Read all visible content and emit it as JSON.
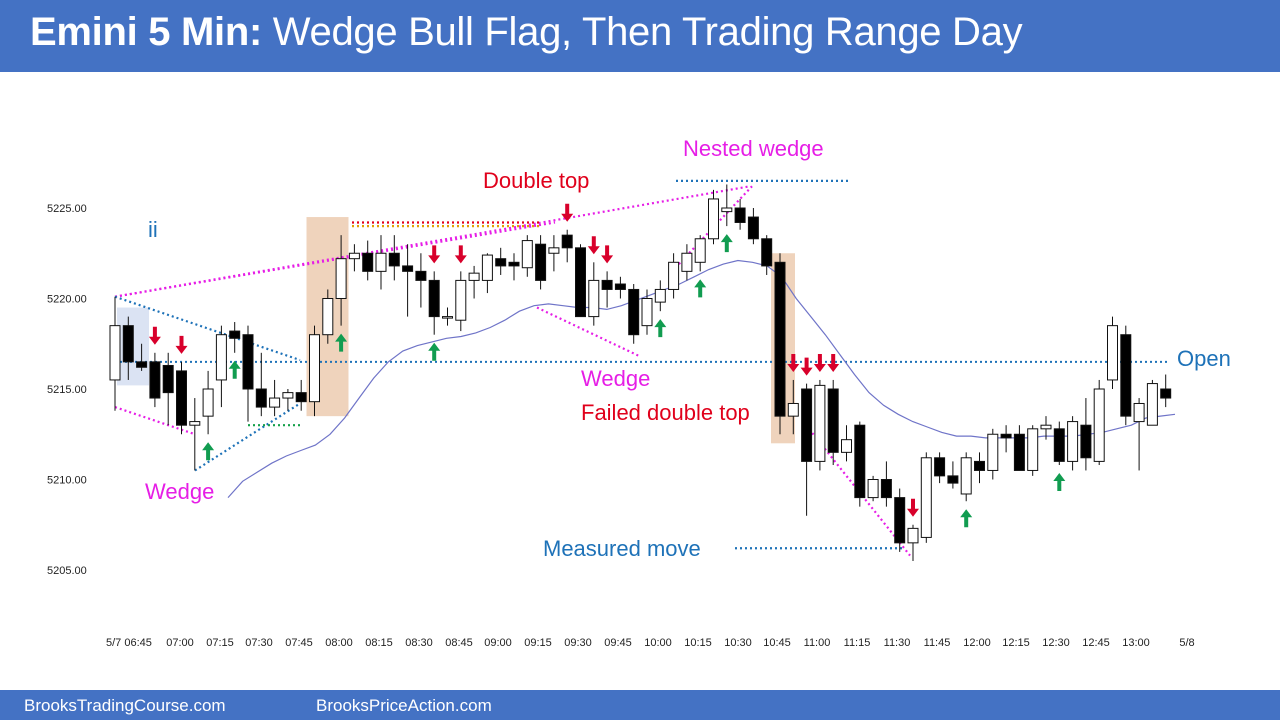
{
  "header": {
    "title_bold": "Emini 5 Min:",
    "title_rest": " Wedge Bull Flag, Then Trading Range Day"
  },
  "footer": {
    "left": "BrooksTradingCourse.com",
    "right": "BrooksPriceAction.com"
  },
  "colors": {
    "header_bg": "#4472c4",
    "bull_body": "#ffffff",
    "bear_body": "#000000",
    "ema": "#6f74c8",
    "magenta": "#e61ee6",
    "blue_label": "#1f6fc0",
    "red_label": "#e0001b",
    "up_arrow": "#119c50",
    "down_arrow": "#d8002b",
    "highlight": "#efd3bc"
  },
  "chart_data": {
    "type": "candlestick",
    "title": "Emini 5 Min",
    "ylim": [
      5203.5,
      5233.0
    ],
    "y_ticks": [
      "5205.00",
      "5210.00",
      "5215.00",
      "5220.00",
      "5225.00"
    ],
    "x_ticks": [
      "5/7 06:45",
      "07:00",
      "07:15",
      "07:30",
      "07:45",
      "08:00",
      "08:15",
      "08:30",
      "08:45",
      "09:00",
      "09:15",
      "09:30",
      "09:45",
      "10:00",
      "10:15",
      "10:30",
      "10:45",
      "11:00",
      "11:15",
      "11:30",
      "11:45",
      "12:00",
      "12:15",
      "12:30",
      "12:45",
      "13:00",
      "5/8"
    ],
    "bars": [
      {
        "o": 5215.5,
        "h": 5220.1,
        "l": 5213.8,
        "c": 5218.5
      },
      {
        "o": 5218.5,
        "h": 5219.0,
        "l": 5215.5,
        "c": 5216.5
      },
      {
        "o": 5216.5,
        "h": 5217.5,
        "l": 5216.0,
        "c": 5216.2
      },
      {
        "o": 5216.5,
        "h": 5217.0,
        "l": 5214.0,
        "c": 5214.5
      },
      {
        "o": 5216.3,
        "h": 5217.0,
        "l": 5213.0,
        "c": 5214.8
      },
      {
        "o": 5216.0,
        "h": 5216.5,
        "l": 5212.5,
        "c": 5213.0
      },
      {
        "o": 5213.0,
        "h": 5214.5,
        "l": 5210.5,
        "c": 5213.2
      },
      {
        "o": 5213.5,
        "h": 5216.0,
        "l": 5212.5,
        "c": 5215.0
      },
      {
        "o": 5215.5,
        "h": 5218.5,
        "l": 5214.0,
        "c": 5218.0
      },
      {
        "o": 5218.2,
        "h": 5218.7,
        "l": 5217.0,
        "c": 5217.8
      },
      {
        "o": 5218.0,
        "h": 5218.5,
        "l": 5213.2,
        "c": 5215.0
      },
      {
        "o": 5215.0,
        "h": 5217.0,
        "l": 5213.5,
        "c": 5214.0
      },
      {
        "o": 5214.0,
        "h": 5215.5,
        "l": 5213.5,
        "c": 5214.5
      },
      {
        "o": 5214.5,
        "h": 5215.0,
        "l": 5213.8,
        "c": 5214.8
      },
      {
        "o": 5214.8,
        "h": 5215.5,
        "l": 5213.8,
        "c": 5214.3
      },
      {
        "o": 5214.3,
        "h": 5218.5,
        "l": 5213.5,
        "c": 5218.0
      },
      {
        "o": 5218.0,
        "h": 5220.5,
        "l": 5217.5,
        "c": 5220.0
      },
      {
        "o": 5220.0,
        "h": 5223.5,
        "l": 5218.5,
        "c": 5222.2
      },
      {
        "o": 5222.2,
        "h": 5223.0,
        "l": 5221.5,
        "c": 5222.5
      },
      {
        "o": 5222.5,
        "h": 5223.2,
        "l": 5221.0,
        "c": 5221.5
      },
      {
        "o": 5221.5,
        "h": 5223.5,
        "l": 5220.5,
        "c": 5222.5
      },
      {
        "o": 5222.5,
        "h": 5223.5,
        "l": 5221.0,
        "c": 5221.8
      },
      {
        "o": 5221.8,
        "h": 5223.0,
        "l": 5219.0,
        "c": 5221.5
      },
      {
        "o": 5221.5,
        "h": 5222.5,
        "l": 5219.5,
        "c": 5221.0
      },
      {
        "o": 5221.0,
        "h": 5221.5,
        "l": 5218.0,
        "c": 5219.0
      },
      {
        "o": 5219.0,
        "h": 5219.5,
        "l": 5218.5,
        "c": 5219.0
      },
      {
        "o": 5218.8,
        "h": 5221.5,
        "l": 5218.2,
        "c": 5221.0
      },
      {
        "o": 5221.0,
        "h": 5221.8,
        "l": 5220.0,
        "c": 5221.4
      },
      {
        "o": 5221.0,
        "h": 5222.5,
        "l": 5220.3,
        "c": 5222.4
      },
      {
        "o": 5222.2,
        "h": 5222.8,
        "l": 5221.3,
        "c": 5221.8
      },
      {
        "o": 5222.0,
        "h": 5222.5,
        "l": 5221.0,
        "c": 5221.8
      },
      {
        "o": 5221.7,
        "h": 5223.5,
        "l": 5221.2,
        "c": 5223.2
      },
      {
        "o": 5223.0,
        "h": 5223.5,
        "l": 5220.5,
        "c": 5221.0
      },
      {
        "o": 5222.5,
        "h": 5223.5,
        "l": 5221.5,
        "c": 5222.8
      },
      {
        "o": 5223.5,
        "h": 5223.8,
        "l": 5222.0,
        "c": 5222.8
      },
      {
        "o": 5222.8,
        "h": 5223.0,
        "l": 5219.0,
        "c": 5219.0
      },
      {
        "o": 5219.0,
        "h": 5222.0,
        "l": 5218.5,
        "c": 5221.0
      },
      {
        "o": 5221.0,
        "h": 5221.5,
        "l": 5219.5,
        "c": 5220.5
      },
      {
        "o": 5220.8,
        "h": 5221.2,
        "l": 5220.0,
        "c": 5220.5
      },
      {
        "o": 5220.5,
        "h": 5220.8,
        "l": 5217.5,
        "c": 5218.0
      },
      {
        "o": 5218.5,
        "h": 5220.5,
        "l": 5218.0,
        "c": 5220.0
      },
      {
        "o": 5219.8,
        "h": 5221.0,
        "l": 5219.3,
        "c": 5220.5
      },
      {
        "o": 5220.5,
        "h": 5222.5,
        "l": 5220.0,
        "c": 5222.0
      },
      {
        "o": 5221.5,
        "h": 5223.0,
        "l": 5221.0,
        "c": 5222.5
      },
      {
        "o": 5222.0,
        "h": 5223.5,
        "l": 5221.5,
        "c": 5223.3
      },
      {
        "o": 5223.3,
        "h": 5226.0,
        "l": 5223.0,
        "c": 5225.5
      },
      {
        "o": 5224.8,
        "h": 5226.3,
        "l": 5224.0,
        "c": 5225.0
      },
      {
        "o": 5225.0,
        "h": 5225.5,
        "l": 5223.8,
        "c": 5224.2
      },
      {
        "o": 5224.5,
        "h": 5225.0,
        "l": 5223.0,
        "c": 5223.3
      },
      {
        "o": 5223.3,
        "h": 5223.5,
        "l": 5221.3,
        "c": 5221.8
      },
      {
        "o": 5222.0,
        "h": 5222.5,
        "l": 5212.5,
        "c": 5213.5
      },
      {
        "o": 5213.5,
        "h": 5215.5,
        "l": 5212.5,
        "c": 5214.2
      },
      {
        "o": 5215.0,
        "h": 5215.3,
        "l": 5208.0,
        "c": 5211.0
      },
      {
        "o": 5211.0,
        "h": 5215.5,
        "l": 5210.5,
        "c": 5215.2
      },
      {
        "o": 5215.0,
        "h": 5215.5,
        "l": 5210.8,
        "c": 5211.5
      },
      {
        "o": 5211.5,
        "h": 5213.0,
        "l": 5211.0,
        "c": 5212.2
      },
      {
        "o": 5213.0,
        "h": 5213.2,
        "l": 5208.5,
        "c": 5209.0
      },
      {
        "o": 5209.0,
        "h": 5210.2,
        "l": 5208.8,
        "c": 5210.0
      },
      {
        "o": 5210.0,
        "h": 5211.0,
        "l": 5208.5,
        "c": 5209.0
      },
      {
        "o": 5209.0,
        "h": 5209.5,
        "l": 5206.0,
        "c": 5206.5
      },
      {
        "o": 5206.5,
        "h": 5207.5,
        "l": 5205.5,
        "c": 5207.3
      },
      {
        "o": 5206.8,
        "h": 5211.5,
        "l": 5206.5,
        "c": 5211.2
      },
      {
        "o": 5211.2,
        "h": 5211.5,
        "l": 5209.8,
        "c": 5210.2
      },
      {
        "o": 5210.2,
        "h": 5211.0,
        "l": 5209.5,
        "c": 5209.8
      },
      {
        "o": 5209.2,
        "h": 5211.5,
        "l": 5208.8,
        "c": 5211.2
      },
      {
        "o": 5211.0,
        "h": 5211.5,
        "l": 5209.8,
        "c": 5210.5
      },
      {
        "o": 5210.5,
        "h": 5212.8,
        "l": 5210.0,
        "c": 5212.5
      },
      {
        "o": 5212.5,
        "h": 5213.0,
        "l": 5211.5,
        "c": 5212.3
      },
      {
        "o": 5212.5,
        "h": 5213.0,
        "l": 5210.5,
        "c": 5210.5
      },
      {
        "o": 5210.5,
        "h": 5213.0,
        "l": 5210.2,
        "c": 5212.8
      },
      {
        "o": 5212.8,
        "h": 5213.5,
        "l": 5212.2,
        "c": 5213.0
      },
      {
        "o": 5212.8,
        "h": 5213.2,
        "l": 5210.8,
        "c": 5211.0
      },
      {
        "o": 5211.0,
        "h": 5213.5,
        "l": 5210.5,
        "c": 5213.2
      },
      {
        "o": 5213.0,
        "h": 5214.5,
        "l": 5210.5,
        "c": 5211.2
      },
      {
        "o": 5211.0,
        "h": 5215.5,
        "l": 5210.8,
        "c": 5215.0
      },
      {
        "o": 5215.5,
        "h": 5219.0,
        "l": 5215.0,
        "c": 5218.5
      },
      {
        "o": 5218.0,
        "h": 5218.5,
        "l": 5213.0,
        "c": 5213.5
      },
      {
        "o": 5213.2,
        "h": 5214.5,
        "l": 5210.5,
        "c": 5214.2
      },
      {
        "o": 5213.0,
        "h": 5215.5,
        "l": 5213.0,
        "c": 5215.3
      },
      {
        "o": 5215.0,
        "h": 5215.8,
        "l": 5214.0,
        "c": 5214.5
      }
    ],
    "ema": [
      5209.0,
      5209.9,
      5210.4,
      5210.9,
      5211.3,
      5211.6,
      5211.9,
      5212.5,
      5213.4,
      5214.5,
      5215.6,
      5216.5,
      5217.1,
      5217.4,
      5217.6,
      5217.8,
      5217.9,
      5218.1,
      5218.4,
      5218.8,
      5219.3,
      5219.6,
      5219.7,
      5219.6,
      5219.5,
      5219.5,
      5219.4,
      5219.6,
      5219.9,
      5220.2,
      5220.5,
      5220.8,
      5221.2,
      5221.6,
      5221.9,
      5222.1,
      5222.0,
      5221.8,
      5221.2,
      5220.0,
      5219.0,
      5218.0,
      5216.9,
      5215.8,
      5214.8,
      5214.1,
      5213.6,
      5213.2,
      5212.9,
      5212.6,
      5212.4,
      5212.4,
      5212.3,
      5212.3,
      5212.3,
      5212.3,
      5212.4,
      5212.4,
      5212.4,
      5212.5,
      5212.6,
      5212.8,
      5213.0,
      5213.4,
      5213.5,
      5213.6
    ],
    "ema_start_bar": 14,
    "levels": [
      {
        "name": "Open",
        "value": 5216.5
      }
    ],
    "annotations": [
      {
        "text": "ii"
      },
      {
        "text": "Wedge"
      },
      {
        "text": "Double top"
      },
      {
        "text": "Nested wedge"
      },
      {
        "text": "Wedge"
      },
      {
        "text": "Failed double top"
      },
      {
        "text": "Measured move"
      },
      {
        "text": "Open"
      }
    ],
    "up_arrow_bars": [
      7,
      9,
      17,
      24,
      41,
      44,
      46,
      64,
      71
    ],
    "down_arrow_bars": [
      3,
      5,
      24,
      26,
      34,
      36,
      37,
      51,
      52,
      53,
      54,
      60
    ]
  }
}
